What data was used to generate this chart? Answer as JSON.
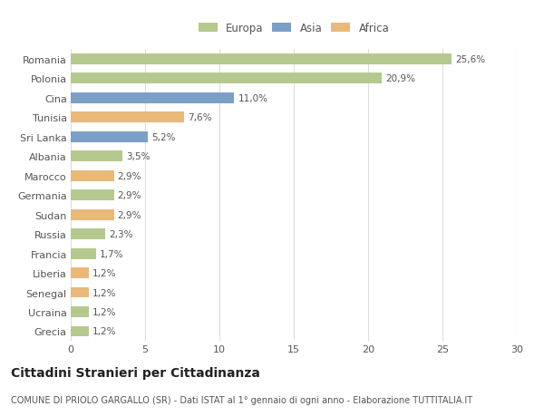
{
  "countries": [
    "Romania",
    "Polonia",
    "Cina",
    "Tunisia",
    "Sri Lanka",
    "Albania",
    "Marocco",
    "Germania",
    "Sudan",
    "Russia",
    "Francia",
    "Liberia",
    "Senegal",
    "Ucraina",
    "Grecia"
  ],
  "values": [
    25.6,
    20.9,
    11.0,
    7.6,
    5.2,
    3.5,
    2.9,
    2.9,
    2.9,
    2.3,
    1.7,
    1.2,
    1.2,
    1.2,
    1.2
  ],
  "labels": [
    "25,6%",
    "20,9%",
    "11,0%",
    "7,6%",
    "5,2%",
    "3,5%",
    "2,9%",
    "2,9%",
    "2,9%",
    "2,3%",
    "1,7%",
    "1,2%",
    "1,2%",
    "1,2%",
    "1,2%"
  ],
  "continents": [
    "Europa",
    "Europa",
    "Asia",
    "Africa",
    "Asia",
    "Europa",
    "Africa",
    "Europa",
    "Africa",
    "Europa",
    "Europa",
    "Africa",
    "Africa",
    "Europa",
    "Europa"
  ],
  "colors": {
    "Europa": "#b5c98e",
    "Asia": "#7b9fc7",
    "Africa": "#e8b97a"
  },
  "legend_labels": [
    "Europa",
    "Asia",
    "Africa"
  ],
  "title": "Cittadini Stranieri per Cittadinanza",
  "subtitle": "COMUNE DI PRIOLO GARGALLO (SR) - Dati ISTAT al 1° gennaio di ogni anno - Elaborazione TUTTITALIA.IT",
  "xlim": [
    0,
    30
  ],
  "xticks": [
    0,
    5,
    10,
    15,
    20,
    25,
    30
  ],
  "bg_color": "#ffffff",
  "grid_color": "#dddddd",
  "bar_height": 0.55,
  "title_fontsize": 10,
  "subtitle_fontsize": 7,
  "label_fontsize": 7.5,
  "tick_fontsize": 8,
  "legend_fontsize": 8.5
}
